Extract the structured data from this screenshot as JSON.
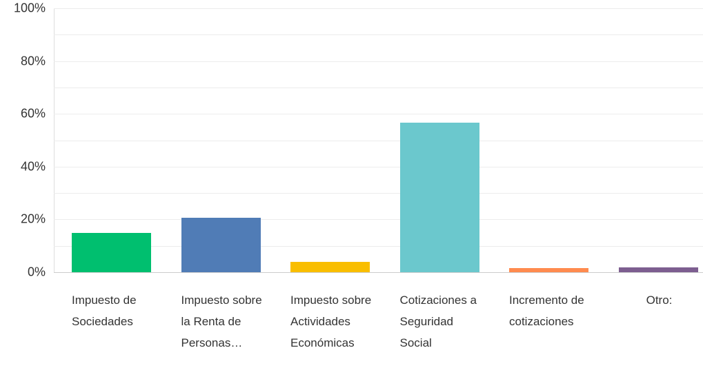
{
  "chart_data": {
    "type": "bar",
    "categories": [
      "Impuesto de Sociedades",
      "Impuesto sobre la Renta de Personas…",
      "Impuesto sobre Actividades Económicas",
      "Cotizaciones a Seguridad Social",
      "Incremento de cotizaciones",
      "Otro:"
    ],
    "values": [
      15,
      20.5,
      4,
      56.7,
      1.5,
      1.8
    ],
    "colors": [
      "#00bf6f",
      "#507cb6",
      "#f9be00",
      "#6bc8cd",
      "#ff8b4f",
      "#7d5e90"
    ],
    "ylim": [
      0,
      100
    ],
    "yticks": [
      {
        "value": 0,
        "label": "0%"
      },
      {
        "value": 20,
        "label": "20%"
      },
      {
        "value": 40,
        "label": "40%"
      },
      {
        "value": 60,
        "label": "60%"
      },
      {
        "value": 80,
        "label": "80%"
      },
      {
        "value": 100,
        "label": "100%"
      }
    ],
    "minor_yticks": [
      10,
      30,
      50,
      70,
      90
    ],
    "grid": true
  }
}
